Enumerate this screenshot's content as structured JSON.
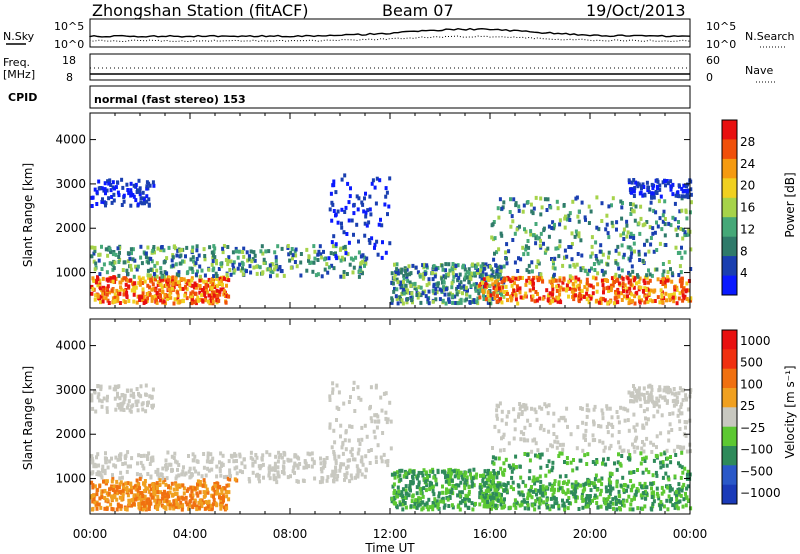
{
  "header": {
    "title": "Zhongshan Station (fitACF)",
    "beam": "Beam 07",
    "date": "19/Oct/2013"
  },
  "strips": {
    "nsky_label": "N.Sky",
    "nsearch_label": "N.Search",
    "freq_label_1": "Freq.",
    "freq_label_2": "[MHz]",
    "nave_label": "Nave",
    "cpid_label": "CPID",
    "noise_ticks": [
      "10^5",
      "10^0"
    ],
    "freq_ticks": [
      "18",
      "8"
    ],
    "nave_ticks": [
      "60",
      "0"
    ],
    "cpid_text": "normal (fast stereo) 153"
  },
  "chart_data": [
    {
      "type": "heatmap",
      "name": "power",
      "ylabel": "Slant Range [km]",
      "xlabel": "Time UT",
      "x_ticks": [
        "00:00",
        "04:00",
        "08:00",
        "12:00",
        "16:00",
        "20:00",
        "00:00"
      ],
      "y_ticks": [
        1000,
        2000,
        3000,
        4000
      ],
      "ylim": [
        200,
        4600
      ],
      "xlim_hours": [
        0,
        24
      ],
      "colorbar": {
        "label": "Power [dB]",
        "ticks": [
          4,
          8,
          12,
          16,
          20,
          24,
          28
        ],
        "range": [
          0,
          32
        ],
        "colors": [
          "#0a1aff",
          "#1a3fb0",
          "#2f7a6a",
          "#45a878",
          "#a6d34a",
          "#f0d020",
          "#f59a10",
          "#f0500a",
          "#e81010"
        ]
      }
    },
    {
      "type": "heatmap",
      "name": "velocity",
      "ylabel": "Slant Range [km]",
      "xlabel": "Time UT",
      "x_ticks": [
        "00:00",
        "04:00",
        "08:00",
        "12:00",
        "16:00",
        "20:00",
        "00:00"
      ],
      "y_ticks": [
        1000,
        2000,
        3000,
        4000
      ],
      "ylim": [
        200,
        4600
      ],
      "xlim_hours": [
        0,
        24
      ],
      "colorbar": {
        "label": "Velocity [m s⁻¹]",
        "ticks": [
          "1000",
          "500",
          "100",
          "25",
          "−25",
          "−100",
          "−500",
          "−1000"
        ],
        "colors": [
          "#1a3ab8",
          "#2a58c8",
          "#2e8a5a",
          "#5cc832",
          "#c8c8c0",
          "#f0a020",
          "#f07010",
          "#f03010",
          "#e81010"
        ]
      }
    }
  ],
  "axis_title": "Time UT"
}
